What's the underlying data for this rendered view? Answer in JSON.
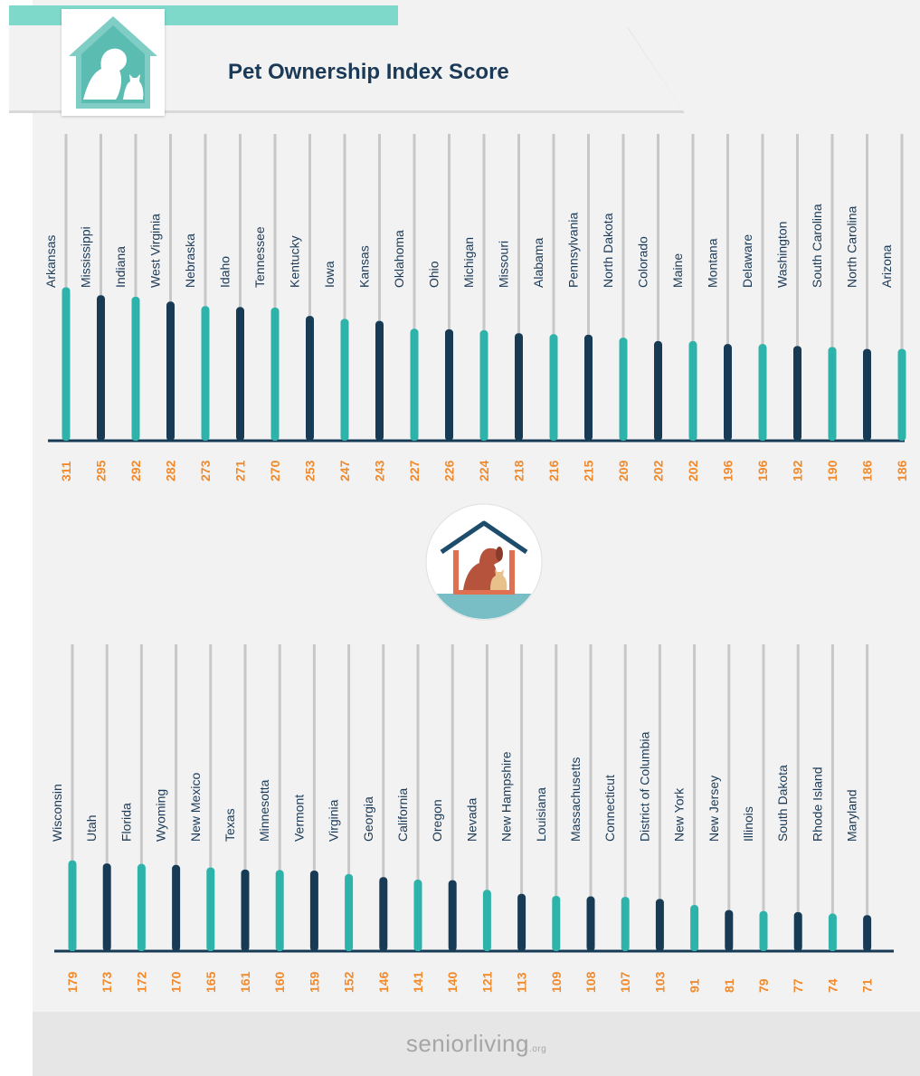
{
  "header": {
    "title": "Pet Ownership Index Score"
  },
  "footer": {
    "brand_main": "seniorliving",
    "brand_suffix": ".org"
  },
  "colors": {
    "teal": "#2eb3ab",
    "navy": "#173b55",
    "value": "#f08a2c",
    "grid": "#c8c8c8"
  },
  "icons": {
    "header": "house-dog-cat-icon",
    "middle": "doghouse-dog-cat-icon"
  },
  "chart_data": [
    {
      "type": "bar",
      "categories": [
        "Arkansas",
        "Mississippi",
        "Indiana",
        "West Virginia",
        "Nebraska",
        "Idaho",
        "Tennessee",
        "Kentucky",
        "Iowa",
        "Kansas",
        "Oklahoma",
        "Ohio",
        "Michigan",
        "Missouri",
        "Alabama",
        "Pennsylvania",
        "North Dakota",
        "Colorado",
        "Maine",
        "Montana",
        "Delaware",
        "Washington",
        "South Carolina",
        "North Carolina",
        "Arizona"
      ],
      "values": [
        311,
        295,
        292,
        282,
        273,
        271,
        270,
        253,
        247,
        243,
        227,
        226,
        224,
        218,
        216,
        215,
        209,
        202,
        202,
        196,
        196,
        192,
        190,
        186,
        186
      ],
      "title": "Pet Ownership Index Score",
      "xlabel": "",
      "ylabel": "",
      "ylim": [
        0,
        330
      ],
      "grid": true
    },
    {
      "type": "bar",
      "categories": [
        "Wisconsin",
        "Utah",
        "Florida",
        "Wyoming",
        "New Mexico",
        "Texas",
        "Minnesotta",
        "Vermont",
        "Virginia",
        "Georgia",
        "California",
        "Oregon",
        "Nevada",
        "New Hampshire",
        "Louisiana",
        "Massachusetts",
        "Connecticut",
        "District of Columbia",
        "New York",
        "New Jersey",
        "Illinois",
        "South Dakota",
        "Rhode Island",
        "Maryland"
      ],
      "values": [
        179,
        173,
        172,
        170,
        165,
        161,
        160,
        159,
        152,
        146,
        141,
        140,
        121,
        113,
        109,
        108,
        107,
        103,
        91,
        81,
        79,
        77,
        74,
        71
      ],
      "xlabel": "",
      "ylabel": "",
      "ylim": [
        0,
        330
      ],
      "grid": true
    }
  ]
}
